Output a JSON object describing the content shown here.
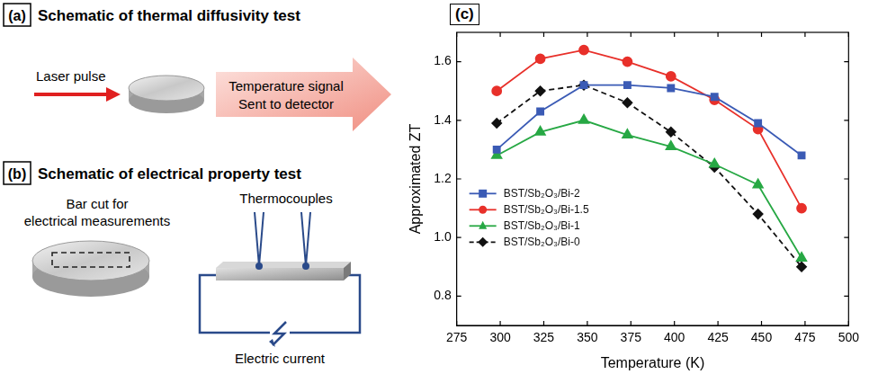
{
  "diagrams": [
    {
      "label": "(a)",
      "title": "Schematic of thermal diffusivity test",
      "input": "Laser pulse",
      "output": [
        "Temperature signal",
        "Sent to detector"
      ]
    },
    {
      "label": "(b)",
      "title": "Schematic of electrical property test",
      "sample": [
        "Bar cut for",
        "electrical measurements"
      ],
      "probes": "Thermocouples",
      "circuit": "Electric current"
    }
  ],
  "chart_data": {
    "type": "line",
    "panel": "(c)",
    "x_label": "Temperature (K)",
    "y_label": "Approximated ZT",
    "x": [
      298,
      323,
      348,
      373,
      398,
      423,
      448,
      473
    ],
    "series": [
      {
        "name": "BST/Sb₂O₃/Bi-2",
        "color": "#3b5bb5",
        "marker": "square",
        "line_style": "solid",
        "values": [
          1.3,
          1.43,
          1.52,
          1.52,
          1.51,
          1.48,
          1.39,
          1.28
        ]
      },
      {
        "name": "BST/Sb₂O₃/Bi-1.5",
        "color": "#e8302a",
        "marker": "circle",
        "line_style": "solid",
        "values": [
          1.5,
          1.61,
          1.64,
          1.6,
          1.55,
          1.47,
          1.37,
          1.1
        ]
      },
      {
        "name": "BST/Sb₂O₃/Bi-1",
        "color": "#27a844",
        "marker": "triangle",
        "line_style": "solid",
        "values": [
          1.28,
          1.36,
          1.4,
          1.35,
          1.31,
          1.25,
          1.18,
          0.93
        ]
      },
      {
        "name": "BST/Sb₂O₃/Bi-0",
        "color": "#111111",
        "marker": "diamond",
        "line_style": "dashed",
        "values": [
          1.39,
          1.5,
          1.52,
          1.46,
          1.36,
          1.24,
          1.08,
          0.9
        ]
      }
    ],
    "xlim": [
      275,
      500
    ],
    "xticks": [
      275,
      300,
      325,
      350,
      375,
      400,
      425,
      450,
      475,
      500
    ],
    "ylim": [
      0.7,
      1.7
    ],
    "yticks": [
      0.8,
      {
        "value": 1,
        "label": "1.0"
      },
      1.2,
      1.4,
      1.6
    ],
    "grid": false,
    "legend": "lower left"
  }
}
